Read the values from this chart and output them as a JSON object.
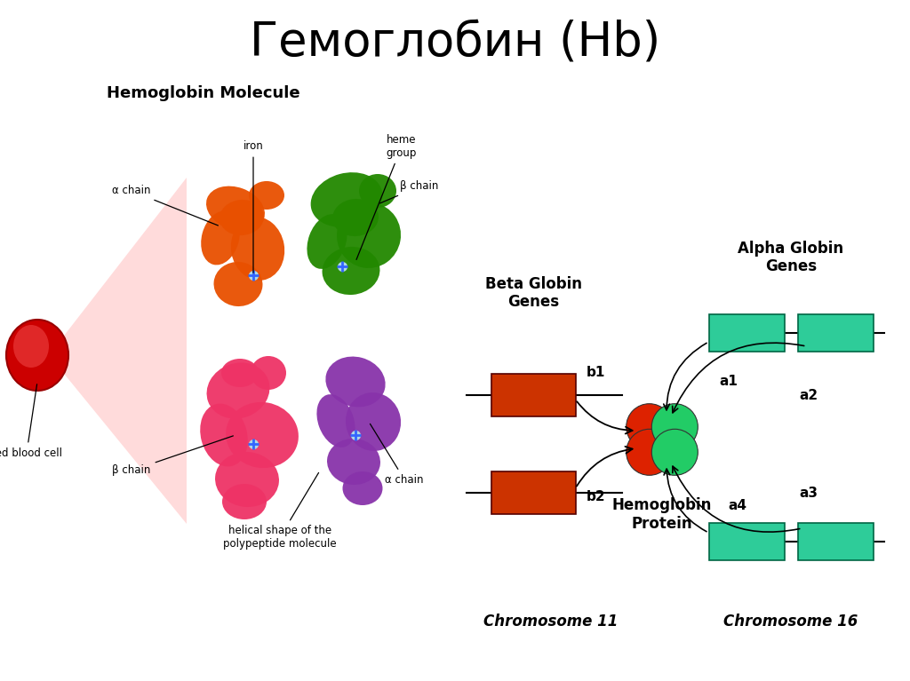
{
  "title": "Гемоглобин (Hb)",
  "title_fontsize": 38,
  "background_color": "#ffffff",
  "left_label": "Hemoglobin Molecule",
  "beta_title": "Beta Globin\nGenes",
  "alpha_title": "Alpha Globin\nGenes",
  "hb_protein_label": "Hemoglobin\nProtein",
  "chr11_label": "Chromosome 11",
  "chr16_label": "Chromosome 16",
  "beta_gene_color": "#cc3300",
  "alpha_gene_color": "#2ecc99",
  "protein_red": "#dd2200",
  "protein_green": "#22cc66"
}
